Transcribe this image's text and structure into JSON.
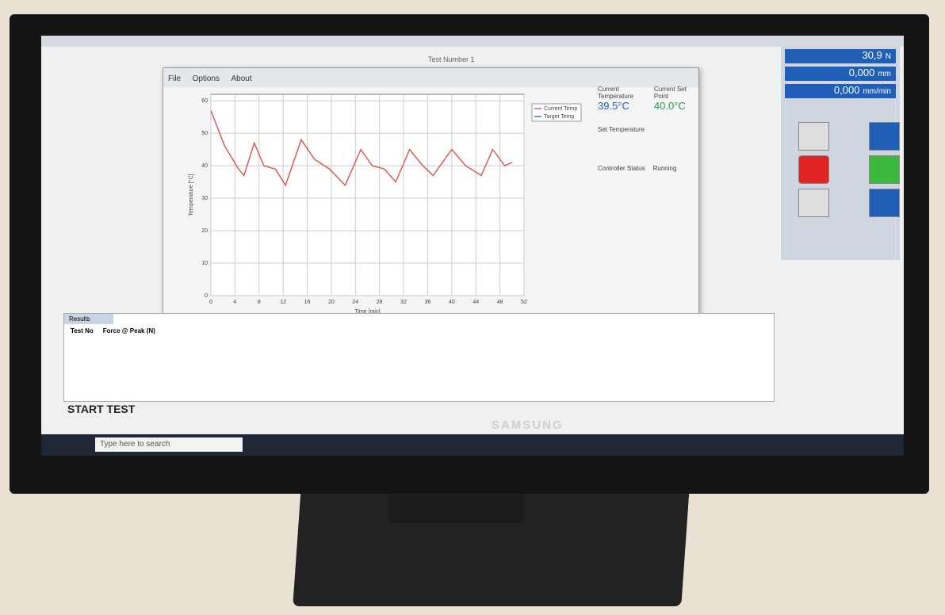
{
  "window_title": "Test Number 1",
  "menu": [
    "File",
    "Options",
    "About"
  ],
  "readouts": [
    {
      "value": "30,9",
      "unit": "N"
    },
    {
      "value": "0,000",
      "unit": "mm"
    },
    {
      "value": "0,000",
      "unit": "mm/min"
    }
  ],
  "temperature": {
    "current_label": "Current Temperature",
    "current": "39.5°C",
    "setpoint_label": "Current Set Point",
    "setpoint": "40.0°C",
    "set_label": "Set Temperature",
    "status_label": "Controller Status",
    "status": "Running"
  },
  "results": {
    "tab": "Results",
    "columns": [
      "Test No",
      "Force @ Peak (N)"
    ]
  },
  "start_button": "START TEST",
  "search": "Type here to search",
  "brand": "SAMSUNG",
  "chart_data": {
    "type": "line",
    "x_label": "Time [min]",
    "y_label": "Temperature [°C]",
    "x": [
      0,
      2.3,
      4.6,
      5.5,
      7.2,
      8.8,
      10.7,
      12.4,
      15,
      17.2,
      19.7,
      22.3,
      24.9,
      26.8,
      28.8,
      30.7,
      33,
      35.2,
      36.9,
      40,
      42.3,
      44.9,
      46.8,
      48.8,
      50
    ],
    "series": [
      {
        "name": "Current Temp",
        "color": "#d9534f",
        "values": [
          57,
          46,
          39,
          37,
          47,
          40,
          39,
          34,
          48,
          42,
          39,
          34,
          45,
          40,
          39,
          35,
          45,
          40,
          37,
          45,
          40,
          37,
          45,
          40,
          41
        ]
      },
      {
        "name": "Target Temp",
        "color": "#3a6fb0",
        "values": [
          null,
          null,
          null,
          null,
          null,
          null,
          null,
          null,
          null,
          null,
          null,
          null,
          null,
          null,
          null,
          null,
          null,
          null,
          null,
          null,
          null,
          null,
          null,
          null,
          null
        ]
      }
    ],
    "xlim": [
      0,
      52
    ],
    "ylim": [
      0,
      62
    ],
    "xticks": [
      0,
      4,
      8,
      12,
      16,
      20,
      24,
      28,
      32,
      36,
      40,
      44,
      48,
      52
    ],
    "yticks": [
      0,
      10,
      20,
      30,
      40,
      50,
      60
    ],
    "grid": true
  }
}
